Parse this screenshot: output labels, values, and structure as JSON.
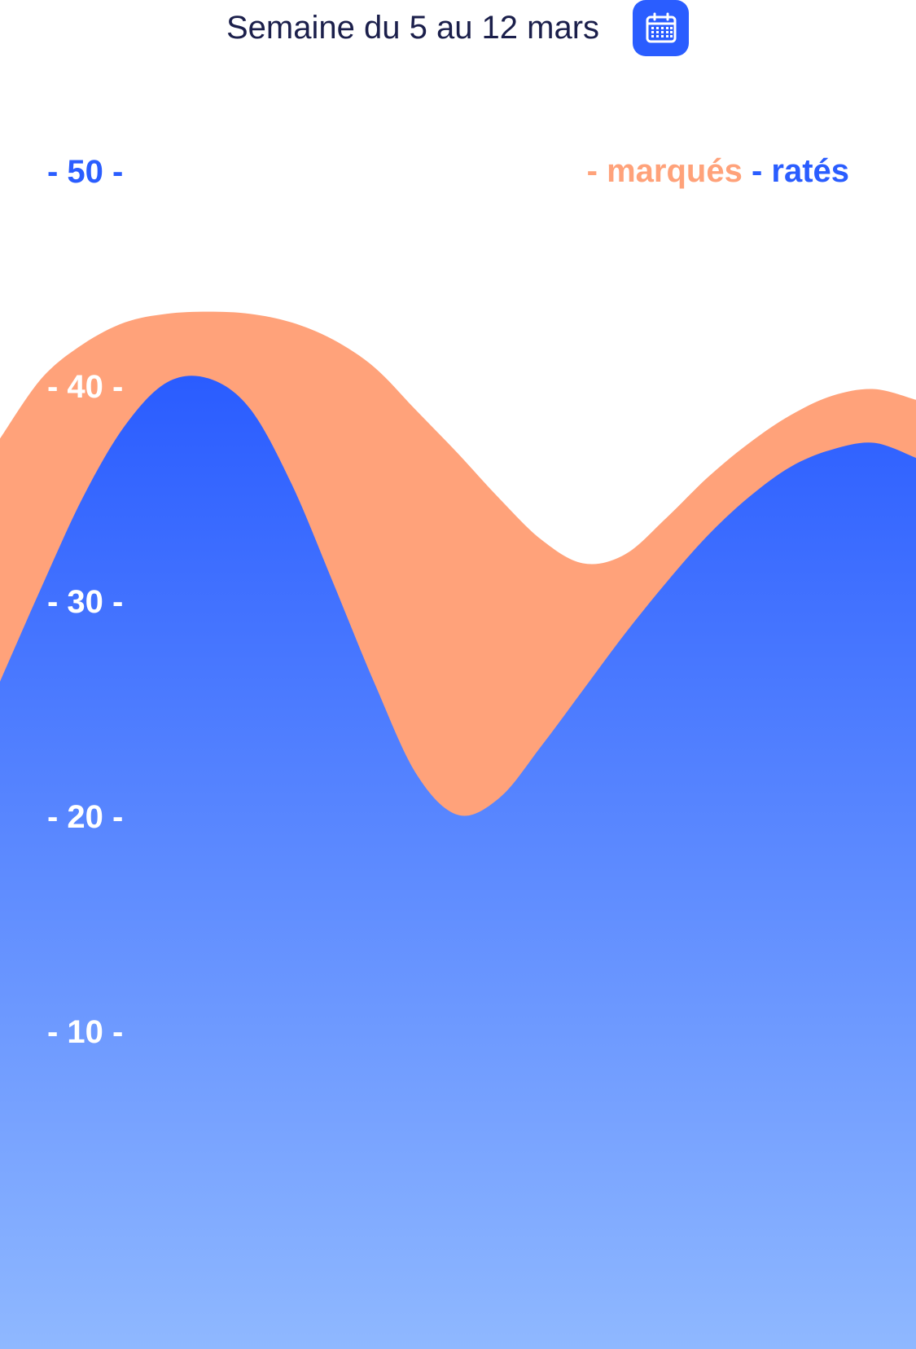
{
  "header": {
    "title": "Semaine du 5 au 12 mars",
    "calendar_icon": "calendar-icon"
  },
  "colors": {
    "accent": "#2a5dff",
    "marques": "#ffa27a",
    "rates_top": "#2a5cff",
    "rates_bottom": "#8fb8ff",
    "title": "#1b1f4b"
  },
  "legend": {
    "marques_dash": "- ",
    "marques_label": "marqués",
    "rates_dash": " - ",
    "rates_label": "ratés"
  },
  "chart_data": {
    "type": "area",
    "ylim": [
      0,
      62
    ],
    "yticks": [
      {
        "value": 50,
        "label": "- 50 -"
      },
      {
        "value": 40,
        "label": "- 40 -"
      },
      {
        "value": 30,
        "label": "- 30 -"
      },
      {
        "value": 20,
        "label": "- 20 -"
      },
      {
        "value": 10,
        "label": "- 10 -"
      }
    ],
    "grid": false,
    "legend_position": "top-right",
    "x": [
      0,
      1,
      2,
      3,
      4,
      5,
      6,
      7,
      8,
      9,
      10,
      11,
      12,
      13,
      14,
      15,
      16,
      17,
      18,
      19,
      20,
      21,
      22
    ],
    "series": [
      {
        "name": "marqués",
        "values": [
          37.6,
          40.4,
          42.0,
          43.0,
          43.4,
          43.5,
          43.4,
          43.0,
          42.2,
          40.9,
          38.9,
          36.9,
          34.8,
          32.9,
          31.8,
          32.2,
          33.9,
          35.8,
          37.4,
          38.7,
          39.6,
          39.9,
          39.4
        ]
      },
      {
        "name": "ratés",
        "values": [
          26.3,
          30.7,
          34.9,
          38.2,
          40.2,
          40.4,
          39.0,
          35.5,
          30.9,
          26.2,
          22.0,
          20.1,
          20.9,
          23.3,
          25.9,
          28.5,
          30.9,
          33.1,
          34.9,
          36.3,
          37.1,
          37.4,
          36.7
        ]
      }
    ]
  }
}
